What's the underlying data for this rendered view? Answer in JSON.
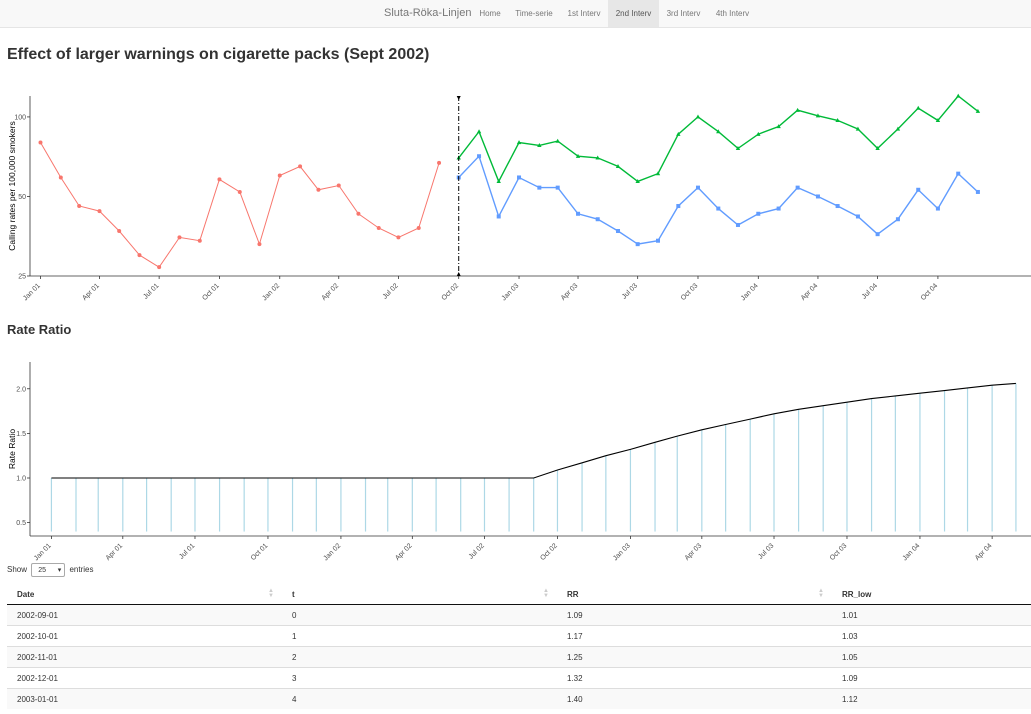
{
  "navbar": {
    "brand": "Sluta-Röka-Linjen",
    "items": [
      {
        "label": "Home",
        "active": false
      },
      {
        "label": "Time-serie",
        "active": false
      },
      {
        "label": "1st Interv",
        "active": false
      },
      {
        "label": "2nd Interv",
        "active": true
      },
      {
        "label": "3rd Interv",
        "active": false
      },
      {
        "label": "4th Interv",
        "active": false
      }
    ]
  },
  "page_title": "Effect of larger warnings on cigarette packs (Sept 2002)",
  "section_title": "Rate Ratio",
  "colors": {
    "pre": "#f8766d",
    "green": "#00ba38",
    "blue": "#619cff",
    "stick": "#add8e6",
    "line": "#000000"
  },
  "chart_data": [
    {
      "type": "line",
      "ylabel": "Calling rates per 100,000 smokers",
      "xlabel": "",
      "y_scale": "log",
      "ylim": [
        25,
        120
      ],
      "yticks": [
        25,
        50,
        100
      ],
      "ytick_labels": [
        "25",
        "50",
        "100"
      ],
      "xlim": [
        "2000-12-16",
        "2005-02-20"
      ],
      "xticks": [
        "2001-01-01",
        "2001-04-01",
        "2001-07-01",
        "2001-10-01",
        "2002-01-01",
        "2002-04-01",
        "2002-07-01",
        "2002-10-01",
        "2003-01-01",
        "2003-04-01",
        "2003-07-01",
        "2003-10-01",
        "2004-01-01",
        "2004-04-01",
        "2004-07-01",
        "2004-10-01"
      ],
      "xtick_labels": [
        "Jan 01",
        "Apr 01",
        "Jul 01",
        "Oct 01",
        "Jan 02",
        "Apr 02",
        "Jul 02",
        "Oct 02",
        "Jan 03",
        "Apr 03",
        "Jul 03",
        "Oct 03",
        "Jan 04",
        "Apr 04",
        "Jul 04",
        "Oct 04"
      ],
      "intervention_date": "2002-10-01",
      "series": [
        {
          "x": [
            "2001-01-01",
            "2001-02-01",
            "2001-03-01",
            "2001-04-01",
            "2001-05-01",
            "2001-06-01",
            "2001-07-01",
            "2001-08-01",
            "2001-09-01",
            "2001-10-01",
            "2001-11-01",
            "2001-12-01",
            "2002-01-01",
            "2002-02-01",
            "2002-03-01",
            "2002-04-01",
            "2002-05-01",
            "2002-06-01",
            "2002-07-01",
            "2002-08-01",
            "2002-09-01"
          ],
          "y": [
            80,
            59,
            46,
            44,
            37,
            30,
            27,
            35,
            34,
            58,
            52,
            33,
            60,
            65,
            53,
            55,
            43,
            38,
            35,
            38,
            67
          ]
        },
        {
          "x": [
            "2002-10-01",
            "2002-11-01",
            "2002-12-01",
            "2003-01-01",
            "2003-02-01",
            "2003-03-01",
            "2003-04-01",
            "2003-05-01",
            "2003-06-01",
            "2003-07-01",
            "2003-08-01",
            "2003-09-01",
            "2003-10-01",
            "2003-11-01",
            "2003-12-01",
            "2004-01-01",
            "2004-02-01",
            "2004-03-01",
            "2004-04-01",
            "2004-05-01",
            "2004-06-01",
            "2004-07-01",
            "2004-08-01",
            "2004-09-01",
            "2004-10-01",
            "2004-11-01",
            "2004-12-01"
          ],
          "y": [
            70,
            88,
            57,
            80,
            78,
            81,
            71,
            70,
            65,
            57,
            61,
            86,
            100,
            88,
            76,
            86,
            92,
            106,
            101,
            97,
            90,
            76,
            90,
            108,
            97,
            120,
            105
          ]
        },
        {
          "x": [
            "2002-10-01",
            "2002-11-01",
            "2002-12-01",
            "2003-01-01",
            "2003-02-01",
            "2003-03-01",
            "2003-04-01",
            "2003-05-01",
            "2003-06-01",
            "2003-07-01",
            "2003-08-01",
            "2003-09-01",
            "2003-10-01",
            "2003-11-01",
            "2003-12-01",
            "2004-01-01",
            "2004-02-01",
            "2004-03-01",
            "2004-04-01",
            "2004-05-01",
            "2004-06-01",
            "2004-07-01",
            "2004-08-01",
            "2004-09-01",
            "2004-10-01",
            "2004-11-01",
            "2004-12-01"
          ],
          "y": [
            59,
            71,
            42,
            59,
            54,
            54,
            43,
            41,
            37,
            33,
            34,
            46,
            54,
            45,
            39,
            43,
            45,
            54,
            50,
            46,
            42,
            36,
            41,
            53,
            45,
            61,
            52
          ]
        }
      ]
    },
    {
      "type": "line",
      "ylabel": "Rate Ratio",
      "xlabel": "",
      "ylim": [
        0.35,
        2.3
      ],
      "yticks": [
        0.5,
        1.0,
        1.5,
        2.0
      ],
      "ytick_labels": [
        "0.5",
        "1.0",
        "1.5",
        "2.0"
      ],
      "xlim": [
        "2000-12-05",
        "2004-05-20"
      ],
      "xticks": [
        "2001-01-01",
        "2001-04-01",
        "2001-07-01",
        "2001-10-01",
        "2002-01-01",
        "2002-04-01",
        "2002-07-01",
        "2002-10-01",
        "2003-01-01",
        "2003-04-01",
        "2003-07-01",
        "2003-10-01",
        "2004-01-01",
        "2004-04-01"
      ],
      "xtick_labels": [
        "Jan 01",
        "Apr 01",
        "Jul 01",
        "Oct 01",
        "Jan 02",
        "Apr 02",
        "Jul 02",
        "Oct 02",
        "Jan 03",
        "Apr 03",
        "Jul 03",
        "Oct 03",
        "Jan 04",
        "Apr 04"
      ],
      "stick_base": 0.4,
      "series": [
        {
          "x": [
            "2001-01-01",
            "2001-02-01",
            "2001-03-01",
            "2001-04-01",
            "2001-05-01",
            "2001-06-01",
            "2001-07-01",
            "2001-08-01",
            "2001-09-01",
            "2001-10-01",
            "2001-11-01",
            "2001-12-01",
            "2002-01-01",
            "2002-02-01",
            "2002-03-01",
            "2002-04-01",
            "2002-05-01",
            "2002-06-01",
            "2002-07-01",
            "2002-08-01",
            "2002-09-01",
            "2002-10-01",
            "2002-11-01",
            "2002-12-01",
            "2003-01-01",
            "2003-02-01",
            "2003-03-01",
            "2003-04-01",
            "2003-05-01",
            "2003-06-01",
            "2003-07-01",
            "2003-08-01",
            "2003-09-01",
            "2003-10-01",
            "2003-11-01",
            "2003-12-01",
            "2004-01-01",
            "2004-02-01",
            "2004-03-01",
            "2004-04-01",
            "2004-05-01"
          ],
          "y": [
            1.0,
            1.0,
            1.0,
            1.0,
            1.0,
            1.0,
            1.0,
            1.0,
            1.0,
            1.0,
            1.0,
            1.0,
            1.0,
            1.0,
            1.0,
            1.0,
            1.0,
            1.0,
            1.0,
            1.0,
            1.0,
            1.09,
            1.17,
            1.25,
            1.32,
            1.4,
            1.47,
            1.54,
            1.6,
            1.66,
            1.72,
            1.77,
            1.81,
            1.85,
            1.89,
            1.92,
            1.95,
            1.98,
            2.01,
            2.04,
            2.06
          ]
        }
      ]
    }
  ],
  "table": {
    "show_label": "Show",
    "entries_value": "25",
    "entries_label": "entries",
    "columns": [
      "Date",
      "t",
      "RR",
      "RR_low"
    ],
    "rows": [
      [
        "2002-09-01",
        "0",
        "1.09",
        "1.01"
      ],
      [
        "2002-10-01",
        "1",
        "1.17",
        "1.03"
      ],
      [
        "2002-11-01",
        "2",
        "1.25",
        "1.05"
      ],
      [
        "2002-12-01",
        "3",
        "1.32",
        "1.09"
      ],
      [
        "2003-01-01",
        "4",
        "1.40",
        "1.12"
      ]
    ]
  }
}
